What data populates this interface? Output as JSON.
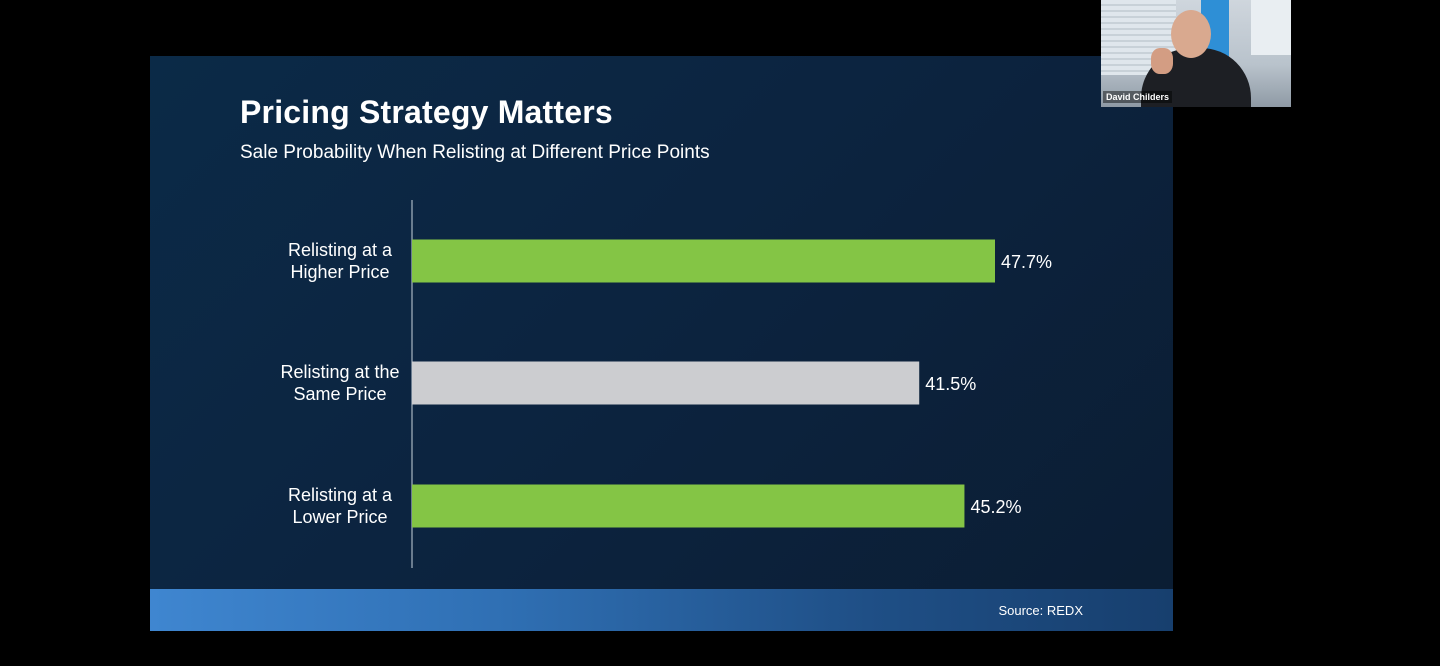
{
  "slide": {
    "title": "Pricing Strategy Matters",
    "subtitle": "Sale Probability When Relisting at Different Price Points",
    "source": "Source: REDX"
  },
  "video": {
    "participant_name": "David Childers"
  },
  "chart_data": {
    "type": "bar",
    "orientation": "horizontal",
    "categories": [
      [
        "Relisting at a",
        "Higher Price"
      ],
      [
        "Relisting at the",
        "Same Price"
      ],
      [
        "Relisting at a",
        "Lower Price"
      ]
    ],
    "values": [
      47.7,
      41.5,
      45.2
    ],
    "value_labels": [
      "47.7%",
      "41.5%",
      "45.2%"
    ],
    "colors": [
      "#84c545",
      "#cccdd0",
      "#84c545"
    ],
    "grid": false
  }
}
